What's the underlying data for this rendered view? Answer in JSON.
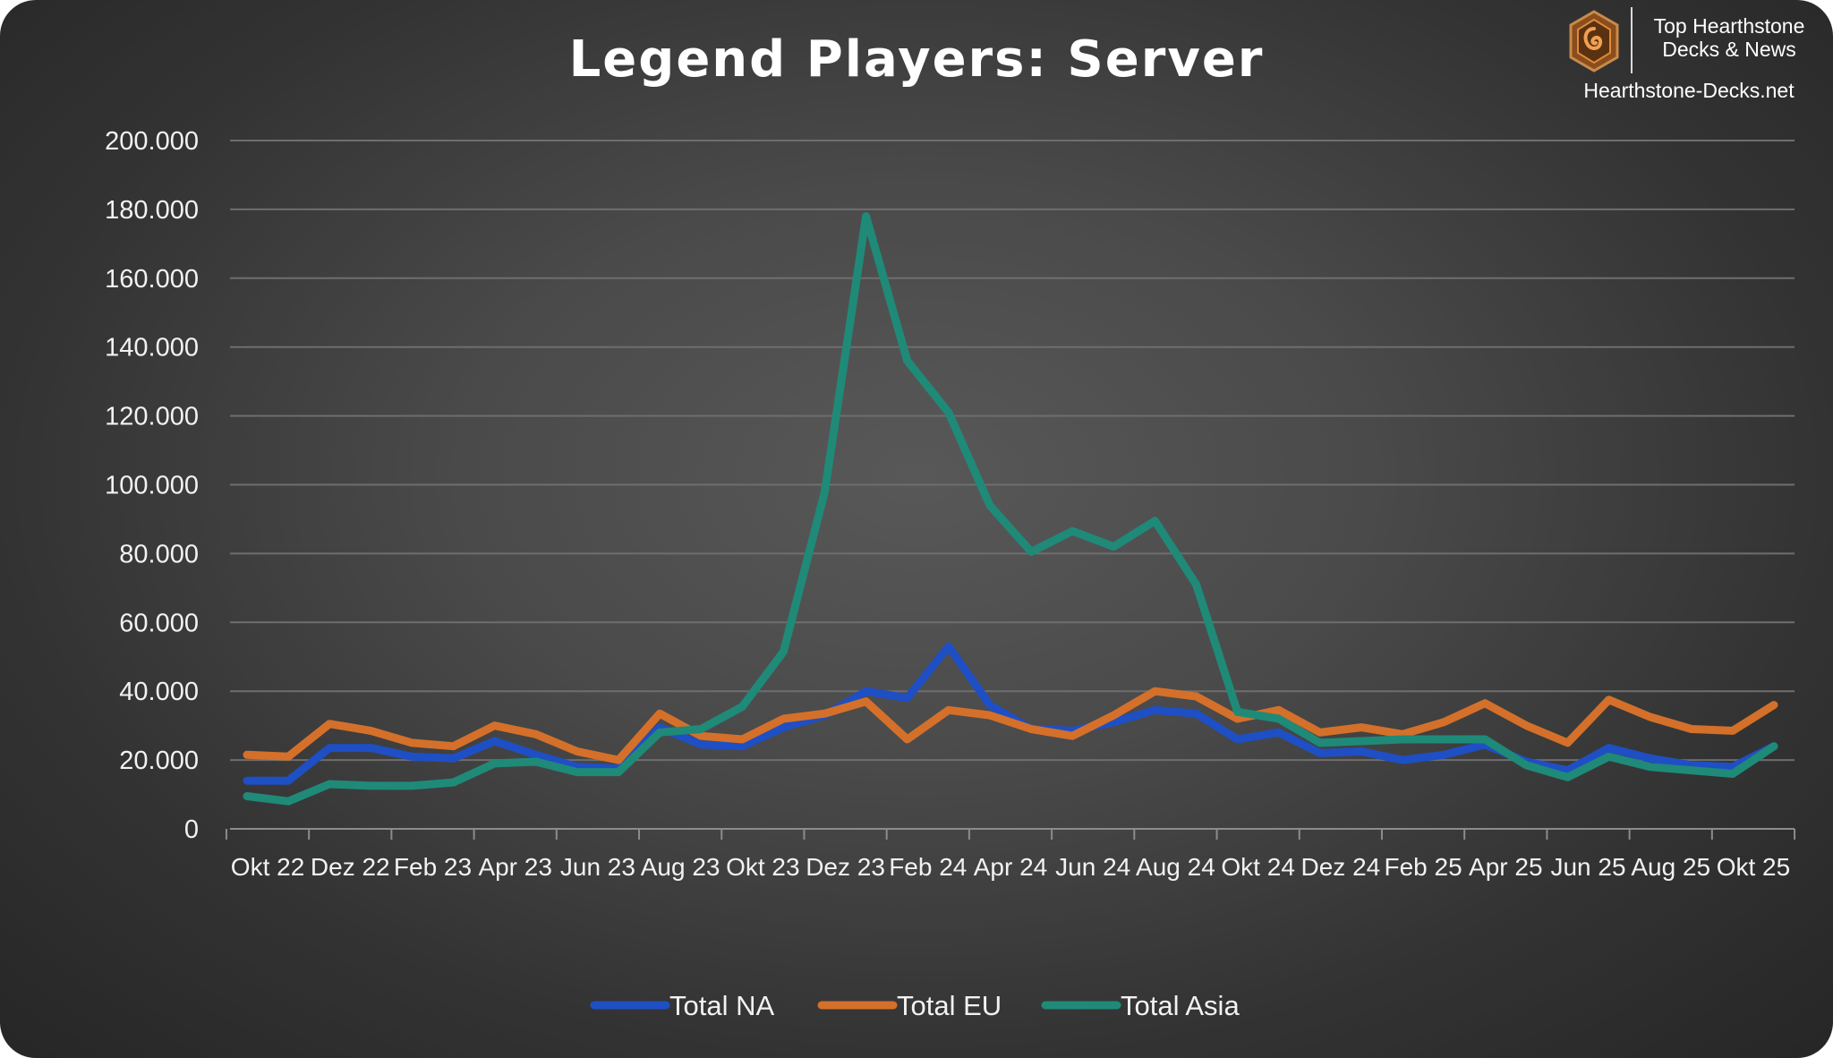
{
  "branding": {
    "line1": "Top Hearthstone",
    "line2": "Decks & News",
    "site": "Hearthstone-Decks.net"
  },
  "chart_data": {
    "type": "line",
    "title": "Legend Players: Server",
    "xlabel": "",
    "ylabel": "",
    "ylim": [
      0,
      200000
    ],
    "yticks": [
      0,
      20000,
      40000,
      60000,
      80000,
      100000,
      120000,
      140000,
      160000,
      180000,
      200000
    ],
    "ytick_labels": [
      "0",
      "20.000",
      "40.000",
      "60.000",
      "80.000",
      "100.000",
      "120.000",
      "140.000",
      "160.000",
      "180.000",
      "200.000"
    ],
    "xtick_labels": [
      "Okt 22",
      "Dez 22",
      "Feb 23",
      "Apr 23",
      "Jun 23",
      "Aug 23",
      "Okt 23",
      "Dez 23",
      "Feb 24",
      "Apr 24",
      "Jun 24",
      "Aug 24",
      "Okt 24",
      "Dez 24",
      "Feb 25",
      "Apr 25",
      "Jun 25",
      "Aug 25",
      "Okt 25"
    ],
    "x": [
      "Okt 22",
      "Nov 22",
      "Dez 22",
      "Jan 23",
      "Feb 23",
      "Mär 23",
      "Apr 23",
      "Mai 23",
      "Jun 23",
      "Jul 23",
      "Aug 23",
      "Sep 23",
      "Okt 23",
      "Nov 23",
      "Dez 23",
      "Jan 24",
      "Feb 24",
      "Mär 24",
      "Apr 24",
      "Mai 24",
      "Jun 24",
      "Jul 24",
      "Aug 24",
      "Sep 24",
      "Okt 24",
      "Nov 24",
      "Dez 24",
      "Jan 25",
      "Feb 25",
      "Mär 25",
      "Apr 25",
      "Mai 25",
      "Jun 25",
      "Jul 25",
      "Aug 25",
      "Sep 25",
      "Okt 25",
      "Nov 25"
    ],
    "grid": true,
    "legend_position": "bottom",
    "series": [
      {
        "name": "Total NA",
        "color": "#1f4fc4",
        "values": [
          14000,
          14000,
          23500,
          23500,
          21000,
          20500,
          25500,
          21500,
          18000,
          17500,
          29500,
          24500,
          24000,
          29500,
          33000,
          40000,
          38000,
          53000,
          36000,
          29000,
          28500,
          31000,
          34500,
          33500,
          26000,
          28000,
          22000,
          22500,
          20000,
          21500,
          24500,
          19500,
          17000,
          23500,
          20500,
          18500,
          18000,
          24000
        ]
      },
      {
        "name": "Total EU",
        "color": "#d4702a",
        "values": [
          21500,
          21000,
          30500,
          28500,
          25000,
          24000,
          30000,
          27500,
          22500,
          20000,
          33500,
          27000,
          26000,
          32000,
          33500,
          37000,
          26000,
          34500,
          33000,
          29000,
          27000,
          33000,
          40000,
          38500,
          32000,
          34500,
          28000,
          29500,
          27500,
          31000,
          36500,
          30000,
          25000,
          37500,
          32500,
          29000,
          28500,
          36000
        ]
      },
      {
        "name": "Total Asia",
        "color": "#1f8a78",
        "values": [
          9500,
          8000,
          13000,
          12500,
          12500,
          13500,
          19000,
          19500,
          16500,
          16500,
          28000,
          29000,
          35500,
          51500,
          98000,
          178000,
          136000,
          121000,
          94000,
          80500,
          86500,
          82000,
          89500,
          71000,
          34000,
          32000,
          25000,
          25500,
          26000,
          26000,
          26000,
          18500,
          15000,
          21000,
          18000,
          17000,
          16000,
          24000
        ]
      }
    ]
  }
}
